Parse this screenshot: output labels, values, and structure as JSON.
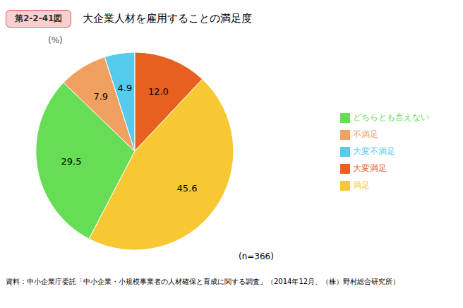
{
  "chart_data": {
    "type": "pie",
    "title": "大企業人材を雇用することの満足度",
    "subtitle": "第2-2-41図",
    "categories": [
      "大変満足",
      "満足",
      "どちらとも言えない",
      "不満足",
      "大変不満足"
    ],
    "values": [
      12.0,
      45.6,
      29.5,
      7.9,
      4.9
    ],
    "value_labels": [
      "12.0",
      "45.6",
      "29.5",
      "7.9",
      "4.9"
    ],
    "data_labels": true,
    "colors": [
      "#E86020",
      "#F7C832",
      "#66DD55",
      "#F0A060",
      "#55CCEE"
    ],
    "legend": "right",
    "annotations": [
      "(%)",
      "(n=366)",
      "資料：中小企業庁委託「中小企業・小規模事業者の人材確保と育成に関する調査」（2014年12月、（株）野村総合研究所）"
    ]
  }
}
